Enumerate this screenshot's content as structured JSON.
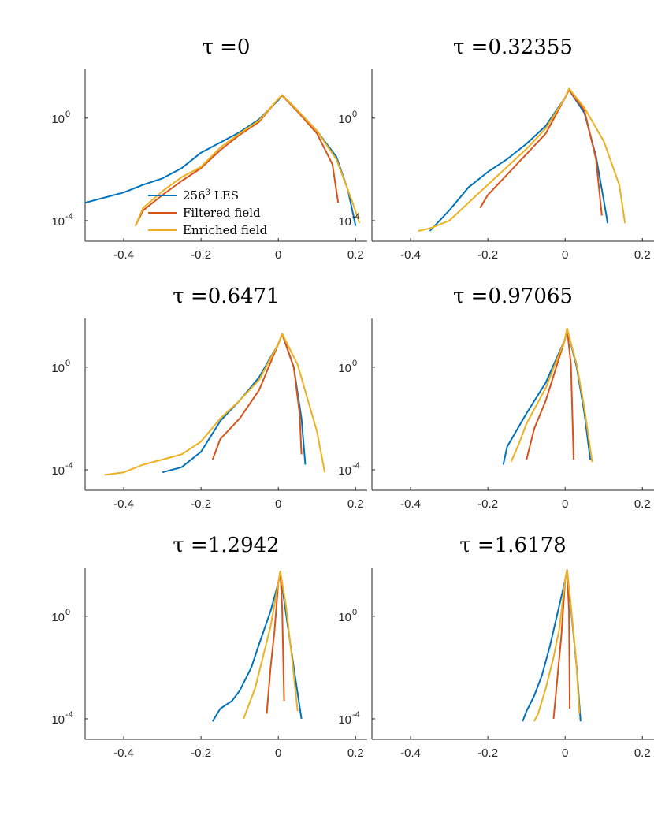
{
  "figure": {
    "description_free": true,
    "xlim": [
      -0.5,
      0.23
    ],
    "ylim_exponents": [
      -4.8,
      1.9
    ],
    "x_ticks": [
      -0.4,
      -0.2,
      0,
      0.2
    ],
    "x_tick_labels": [
      "-0.4",
      "-0.2",
      "0",
      "0.2"
    ],
    "y_tick_bases": [
      "10",
      "10"
    ],
    "y_tick_exponents": [
      "0",
      "-4"
    ],
    "y_tick_values": [
      0,
      -4
    ],
    "colors": {
      "les": "#0072BD",
      "filtered": "#D95319",
      "enriched": "#EDB120"
    }
  },
  "legend": {
    "les_base": "256",
    "les_sup": "3",
    "les_rest": " LES",
    "filtered": "Filtered field",
    "enriched": "Enriched field"
  },
  "chart_data": [
    {
      "type": "line",
      "title": "τ =0",
      "tau": 0,
      "y_scale": "log10",
      "series": [
        {
          "name": "256^3 LES",
          "x": [
            -0.5,
            -0.45,
            -0.4,
            -0.35,
            -0.3,
            -0.25,
            -0.2,
            -0.15,
            -0.1,
            -0.05,
            0,
            0.01,
            0.05,
            0.1,
            0.15,
            0.18,
            0.2
          ],
          "log10_y": [
            -3.3,
            -3.1,
            -2.9,
            -2.6,
            -2.35,
            -1.95,
            -1.35,
            -0.95,
            -0.55,
            -0.05,
            0.7,
            0.9,
            0.3,
            -0.5,
            -1.5,
            -2.8,
            -4.2
          ]
        },
        {
          "name": "Filtered field",
          "x": [
            -0.37,
            -0.35,
            -0.3,
            -0.25,
            -0.2,
            -0.15,
            -0.1,
            -0.05,
            0,
            0.01,
            0.05,
            0.1,
            0.14,
            0.155
          ],
          "log10_y": [
            -4.2,
            -3.6,
            -3.0,
            -2.45,
            -1.95,
            -1.25,
            -0.65,
            -0.15,
            0.75,
            0.88,
            0.25,
            -0.6,
            -1.8,
            -3.3
          ]
        },
        {
          "name": "Enriched field",
          "x": [
            -0.37,
            -0.35,
            -0.3,
            -0.25,
            -0.2,
            -0.15,
            -0.1,
            -0.05,
            0,
            0.01,
            0.05,
            0.1,
            0.15,
            0.19,
            0.21
          ],
          "log10_y": [
            -4.2,
            -3.5,
            -2.85,
            -2.3,
            -1.9,
            -1.15,
            -0.6,
            -0.1,
            0.75,
            0.9,
            0.3,
            -0.5,
            -1.6,
            -3.2,
            -4.1
          ]
        }
      ]
    },
    {
      "type": "line",
      "title": "τ =0.32355",
      "tau": 0.32355,
      "y_scale": "log10",
      "series": [
        {
          "name": "256^3 LES",
          "x": [
            -0.35,
            -0.3,
            -0.25,
            -0.2,
            -0.15,
            -0.1,
            -0.05,
            0,
            0.01,
            0.05,
            0.08,
            0.1,
            0.11
          ],
          "log10_y": [
            -4.4,
            -3.6,
            -2.7,
            -2.1,
            -1.6,
            -1.0,
            -0.3,
            0.8,
            1.1,
            0.2,
            -1.5,
            -3.2,
            -4.1
          ]
        },
        {
          "name": "Filtered field",
          "x": [
            -0.22,
            -0.2,
            -0.15,
            -0.1,
            -0.05,
            0,
            0.01,
            0.05,
            0.08,
            0.095
          ],
          "log10_y": [
            -3.5,
            -3.0,
            -2.2,
            -1.4,
            -0.6,
            0.8,
            1.1,
            0.3,
            -1.6,
            -3.8
          ]
        },
        {
          "name": "Enriched field",
          "x": [
            -0.38,
            -0.35,
            -0.3,
            -0.25,
            -0.2,
            -0.15,
            -0.1,
            -0.05,
            0,
            0.01,
            0.05,
            0.1,
            0.14,
            0.155
          ],
          "log10_y": [
            -4.4,
            -4.3,
            -4.0,
            -3.3,
            -2.6,
            -1.9,
            -1.2,
            -0.4,
            0.8,
            1.15,
            0.4,
            -0.9,
            -2.6,
            -4.1
          ]
        }
      ]
    },
    {
      "type": "line",
      "title": "τ =0.6471",
      "tau": 0.6471,
      "y_scale": "log10",
      "series": [
        {
          "name": "256^3 LES",
          "x": [
            -0.3,
            -0.25,
            -0.2,
            -0.15,
            -0.1,
            -0.05,
            0,
            0.01,
            0.04,
            0.06,
            0.07
          ],
          "log10_y": [
            -4.1,
            -3.9,
            -3.3,
            -2.1,
            -1.3,
            -0.4,
            0.9,
            1.3,
            0.0,
            -2.0,
            -3.8
          ]
        },
        {
          "name": "Filtered field",
          "x": [
            -0.17,
            -0.15,
            -0.1,
            -0.05,
            0,
            0.01,
            0.04,
            0.055,
            0.06
          ],
          "log10_y": [
            -3.6,
            -2.8,
            -2.0,
            -0.9,
            0.9,
            1.3,
            0.0,
            -1.8,
            -3.4
          ]
        },
        {
          "name": "Enriched field",
          "x": [
            -0.45,
            -0.4,
            -0.35,
            -0.3,
            -0.25,
            -0.2,
            -0.15,
            -0.1,
            -0.05,
            0,
            0.01,
            0.05,
            0.1,
            0.12
          ],
          "log10_y": [
            -4.2,
            -4.1,
            -3.8,
            -3.6,
            -3.4,
            -2.9,
            -2.0,
            -1.3,
            -0.5,
            0.9,
            1.3,
            0.1,
            -2.5,
            -4.1
          ]
        }
      ]
    },
    {
      "type": "line",
      "title": "τ =0.97065",
      "tau": 0.97065,
      "y_scale": "log10",
      "series": [
        {
          "name": "256^3 LES",
          "x": [
            -0.16,
            -0.15,
            -0.1,
            -0.05,
            0,
            0.005,
            0.03,
            0.05,
            0.065
          ],
          "log10_y": [
            -3.8,
            -3.1,
            -1.8,
            -0.6,
            1.1,
            1.5,
            0.0,
            -1.8,
            -3.6
          ]
        },
        {
          "name": "Filtered field",
          "x": [
            -0.1,
            -0.08,
            -0.05,
            0,
            0.005,
            0.015,
            0.02,
            0.022
          ],
          "log10_y": [
            -3.6,
            -2.4,
            -1.3,
            1.1,
            1.5,
            0.1,
            -2.5,
            -3.6
          ]
        },
        {
          "name": "Enriched field",
          "x": [
            -0.14,
            -0.12,
            -0.1,
            -0.05,
            0,
            0.005,
            0.03,
            0.05,
            0.07
          ],
          "log10_y": [
            -3.7,
            -3.0,
            -2.2,
            -0.8,
            1.1,
            1.5,
            0.1,
            -1.6,
            -3.7
          ]
        }
      ]
    },
    {
      "type": "line",
      "title": "τ =1.2942",
      "tau": 1.2942,
      "y_scale": "log10",
      "series": [
        {
          "name": "256^3 LES",
          "x": [
            -0.17,
            -0.15,
            -0.12,
            -0.1,
            -0.07,
            -0.05,
            -0.02,
            0,
            0.005,
            0.02,
            0.04,
            0.06
          ],
          "log10_y": [
            -4.1,
            -3.6,
            -3.3,
            -2.9,
            -2.0,
            -1.1,
            0.2,
            1.3,
            1.7,
            0.1,
            -2.0,
            -4.0
          ]
        },
        {
          "name": "Filtered field",
          "x": [
            -0.03,
            -0.02,
            -0.01,
            0,
            0.005,
            0.01,
            0.015
          ],
          "log10_y": [
            -3.8,
            -2.0,
            -0.6,
            1.3,
            1.75,
            0.3,
            -3.3
          ]
        },
        {
          "name": "Enriched field",
          "x": [
            -0.09,
            -0.08,
            -0.06,
            -0.04,
            -0.02,
            0,
            0.005,
            0.02,
            0.035,
            0.05
          ],
          "log10_y": [
            -4.0,
            -3.6,
            -2.8,
            -1.6,
            -0.4,
            1.3,
            1.75,
            0.4,
            -1.6,
            -3.7
          ]
        }
      ]
    },
    {
      "type": "line",
      "title": "τ =1.6178",
      "tau": 1.6178,
      "y_scale": "log10",
      "series": [
        {
          "name": "256^3 LES",
          "x": [
            -0.11,
            -0.1,
            -0.08,
            -0.06,
            -0.04,
            -0.02,
            0,
            0.005,
            0.015,
            0.03,
            0.04
          ],
          "log10_y": [
            -4.1,
            -3.7,
            -3.1,
            -2.3,
            -1.2,
            0.1,
            1.4,
            1.8,
            0.3,
            -2.0,
            -4.1
          ]
        },
        {
          "name": "Filtered field",
          "x": [
            -0.03,
            -0.02,
            -0.01,
            0,
            0.005,
            0.01,
            0.012
          ],
          "log10_y": [
            -4.0,
            -2.4,
            -0.8,
            1.4,
            1.8,
            0.2,
            -3.6
          ]
        },
        {
          "name": "Enriched field",
          "x": [
            -0.08,
            -0.07,
            -0.05,
            -0.03,
            -0.015,
            0,
            0.005,
            0.015,
            0.028,
            0.037
          ],
          "log10_y": [
            -4.1,
            -3.8,
            -2.8,
            -1.6,
            -0.5,
            1.4,
            1.8,
            0.4,
            -1.6,
            -3.8
          ]
        }
      ]
    }
  ]
}
